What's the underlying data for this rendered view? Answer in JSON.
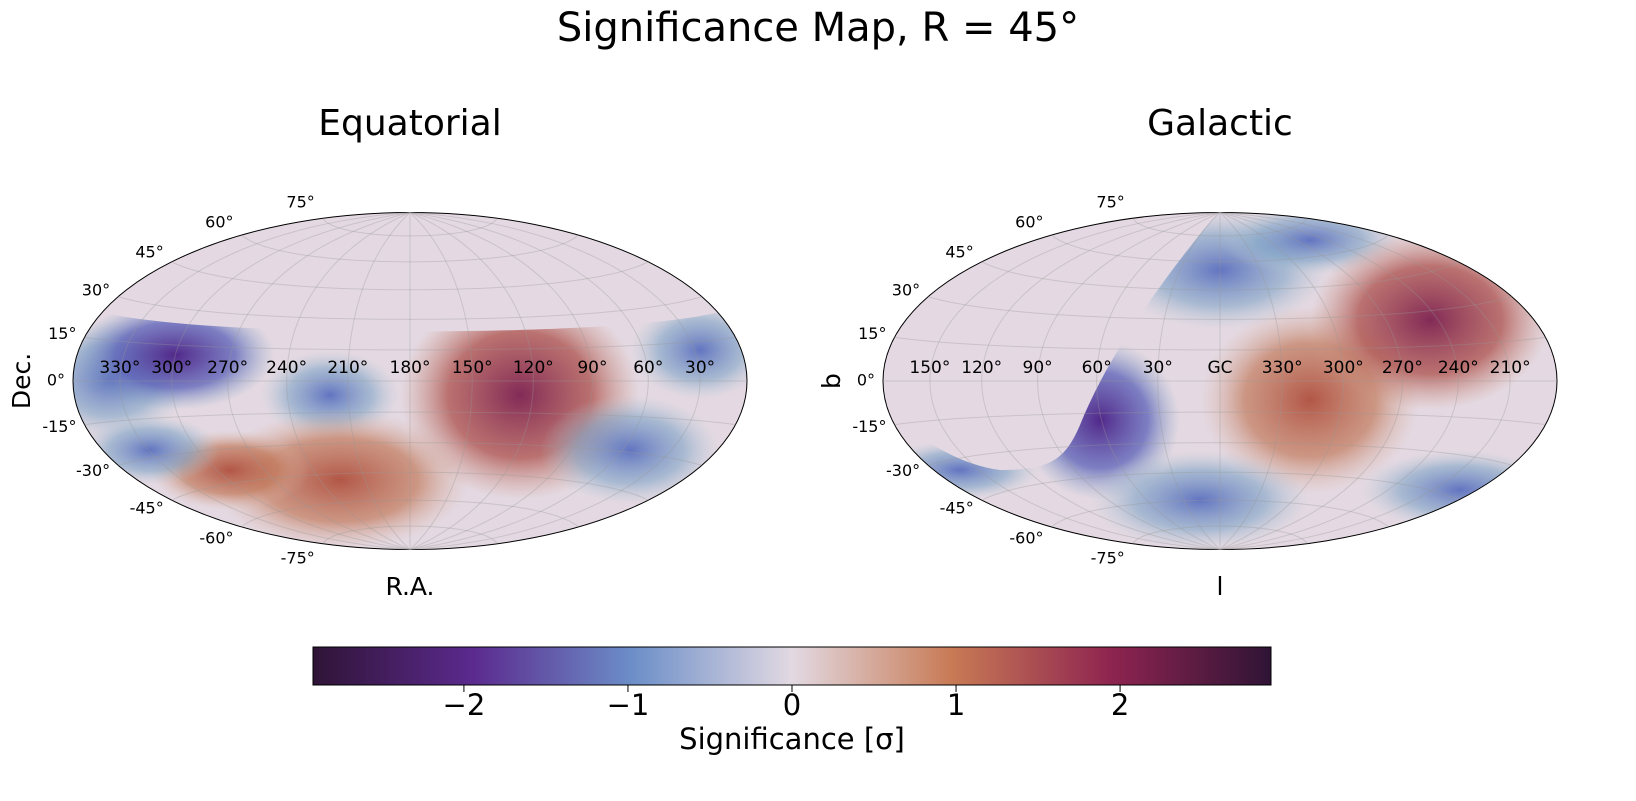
{
  "chart_data": {
    "type": "map",
    "title": "Significance Map, R = 45°",
    "panels": [
      {
        "title": "Equatorial",
        "xlabel": "R.A.",
        "ylabel": "Dec.",
        "lon_center": 180,
        "lon_ticks": [
          {
            "value": 330,
            "label": "330°"
          },
          {
            "value": 300,
            "label": "300°"
          },
          {
            "value": 270,
            "label": "270°"
          },
          {
            "value": 240,
            "label": "240°"
          },
          {
            "value": 210,
            "label": "210°"
          },
          {
            "value": 180,
            "label": "180°"
          },
          {
            "value": 150,
            "label": "150°"
          },
          {
            "value": 120,
            "label": "120°"
          },
          {
            "value": 90,
            "label": "90°"
          },
          {
            "value": 60,
            "label": "60°"
          },
          {
            "value": 30,
            "label": "30°"
          }
        ],
        "lat_ticks": [
          {
            "value": 75,
            "label": "75°"
          },
          {
            "value": 60,
            "label": "60°"
          },
          {
            "value": 45,
            "label": "45°"
          },
          {
            "value": 30,
            "label": "30°"
          },
          {
            "value": 15,
            "label": "15°"
          },
          {
            "value": 0,
            "label": "0°"
          },
          {
            "value": -15,
            "label": "-15°"
          },
          {
            "value": -30,
            "label": "-30°"
          },
          {
            "value": -45,
            "label": "-45°"
          },
          {
            "value": -60,
            "label": "-60°"
          },
          {
            "value": -75,
            "label": "-75°"
          }
        ]
      },
      {
        "title": "Galactic",
        "xlabel": "l",
        "ylabel": "b",
        "lon_center": 0,
        "lon_ticks": [
          {
            "value": 150,
            "label": "150°"
          },
          {
            "value": 120,
            "label": "120°"
          },
          {
            "value": 90,
            "label": "90°"
          },
          {
            "value": 60,
            "label": "60°"
          },
          {
            "value": 30,
            "label": "30°"
          },
          {
            "value": 0,
            "label": "GC"
          },
          {
            "value": 330,
            "label": "330°"
          },
          {
            "value": 300,
            "label": "300°"
          },
          {
            "value": 270,
            "label": "270°"
          },
          {
            "value": 240,
            "label": "240°"
          },
          {
            "value": 210,
            "label": "210°"
          }
        ],
        "lat_ticks": [
          {
            "value": 75,
            "label": "75°"
          },
          {
            "value": 60,
            "label": "60°"
          },
          {
            "value": 45,
            "label": "45°"
          },
          {
            "value": 30,
            "label": "30°"
          },
          {
            "value": 15,
            "label": "15°"
          },
          {
            "value": 0,
            "label": "0°"
          },
          {
            "value": -15,
            "label": "-15°"
          },
          {
            "value": -30,
            "label": "-30°"
          },
          {
            "value": -45,
            "label": "-45°"
          },
          {
            "value": -60,
            "label": "-60°"
          },
          {
            "value": -75,
            "label": "-75°"
          }
        ]
      }
    ],
    "colorbar": {
      "label": "Significance [σ]",
      "clim": [
        -2.92,
        2.92
      ],
      "ticks": [
        {
          "value": -2,
          "label": "−2"
        },
        {
          "value": -1,
          "label": "−1"
        },
        0,
        1,
        2
      ],
      "colormap": [
        "#2f1436",
        "#5b2a8e",
        "#6c8ec8",
        "#e2d9e2",
        "#c87a55",
        "#8e2450",
        "#2f1436"
      ]
    }
  }
}
